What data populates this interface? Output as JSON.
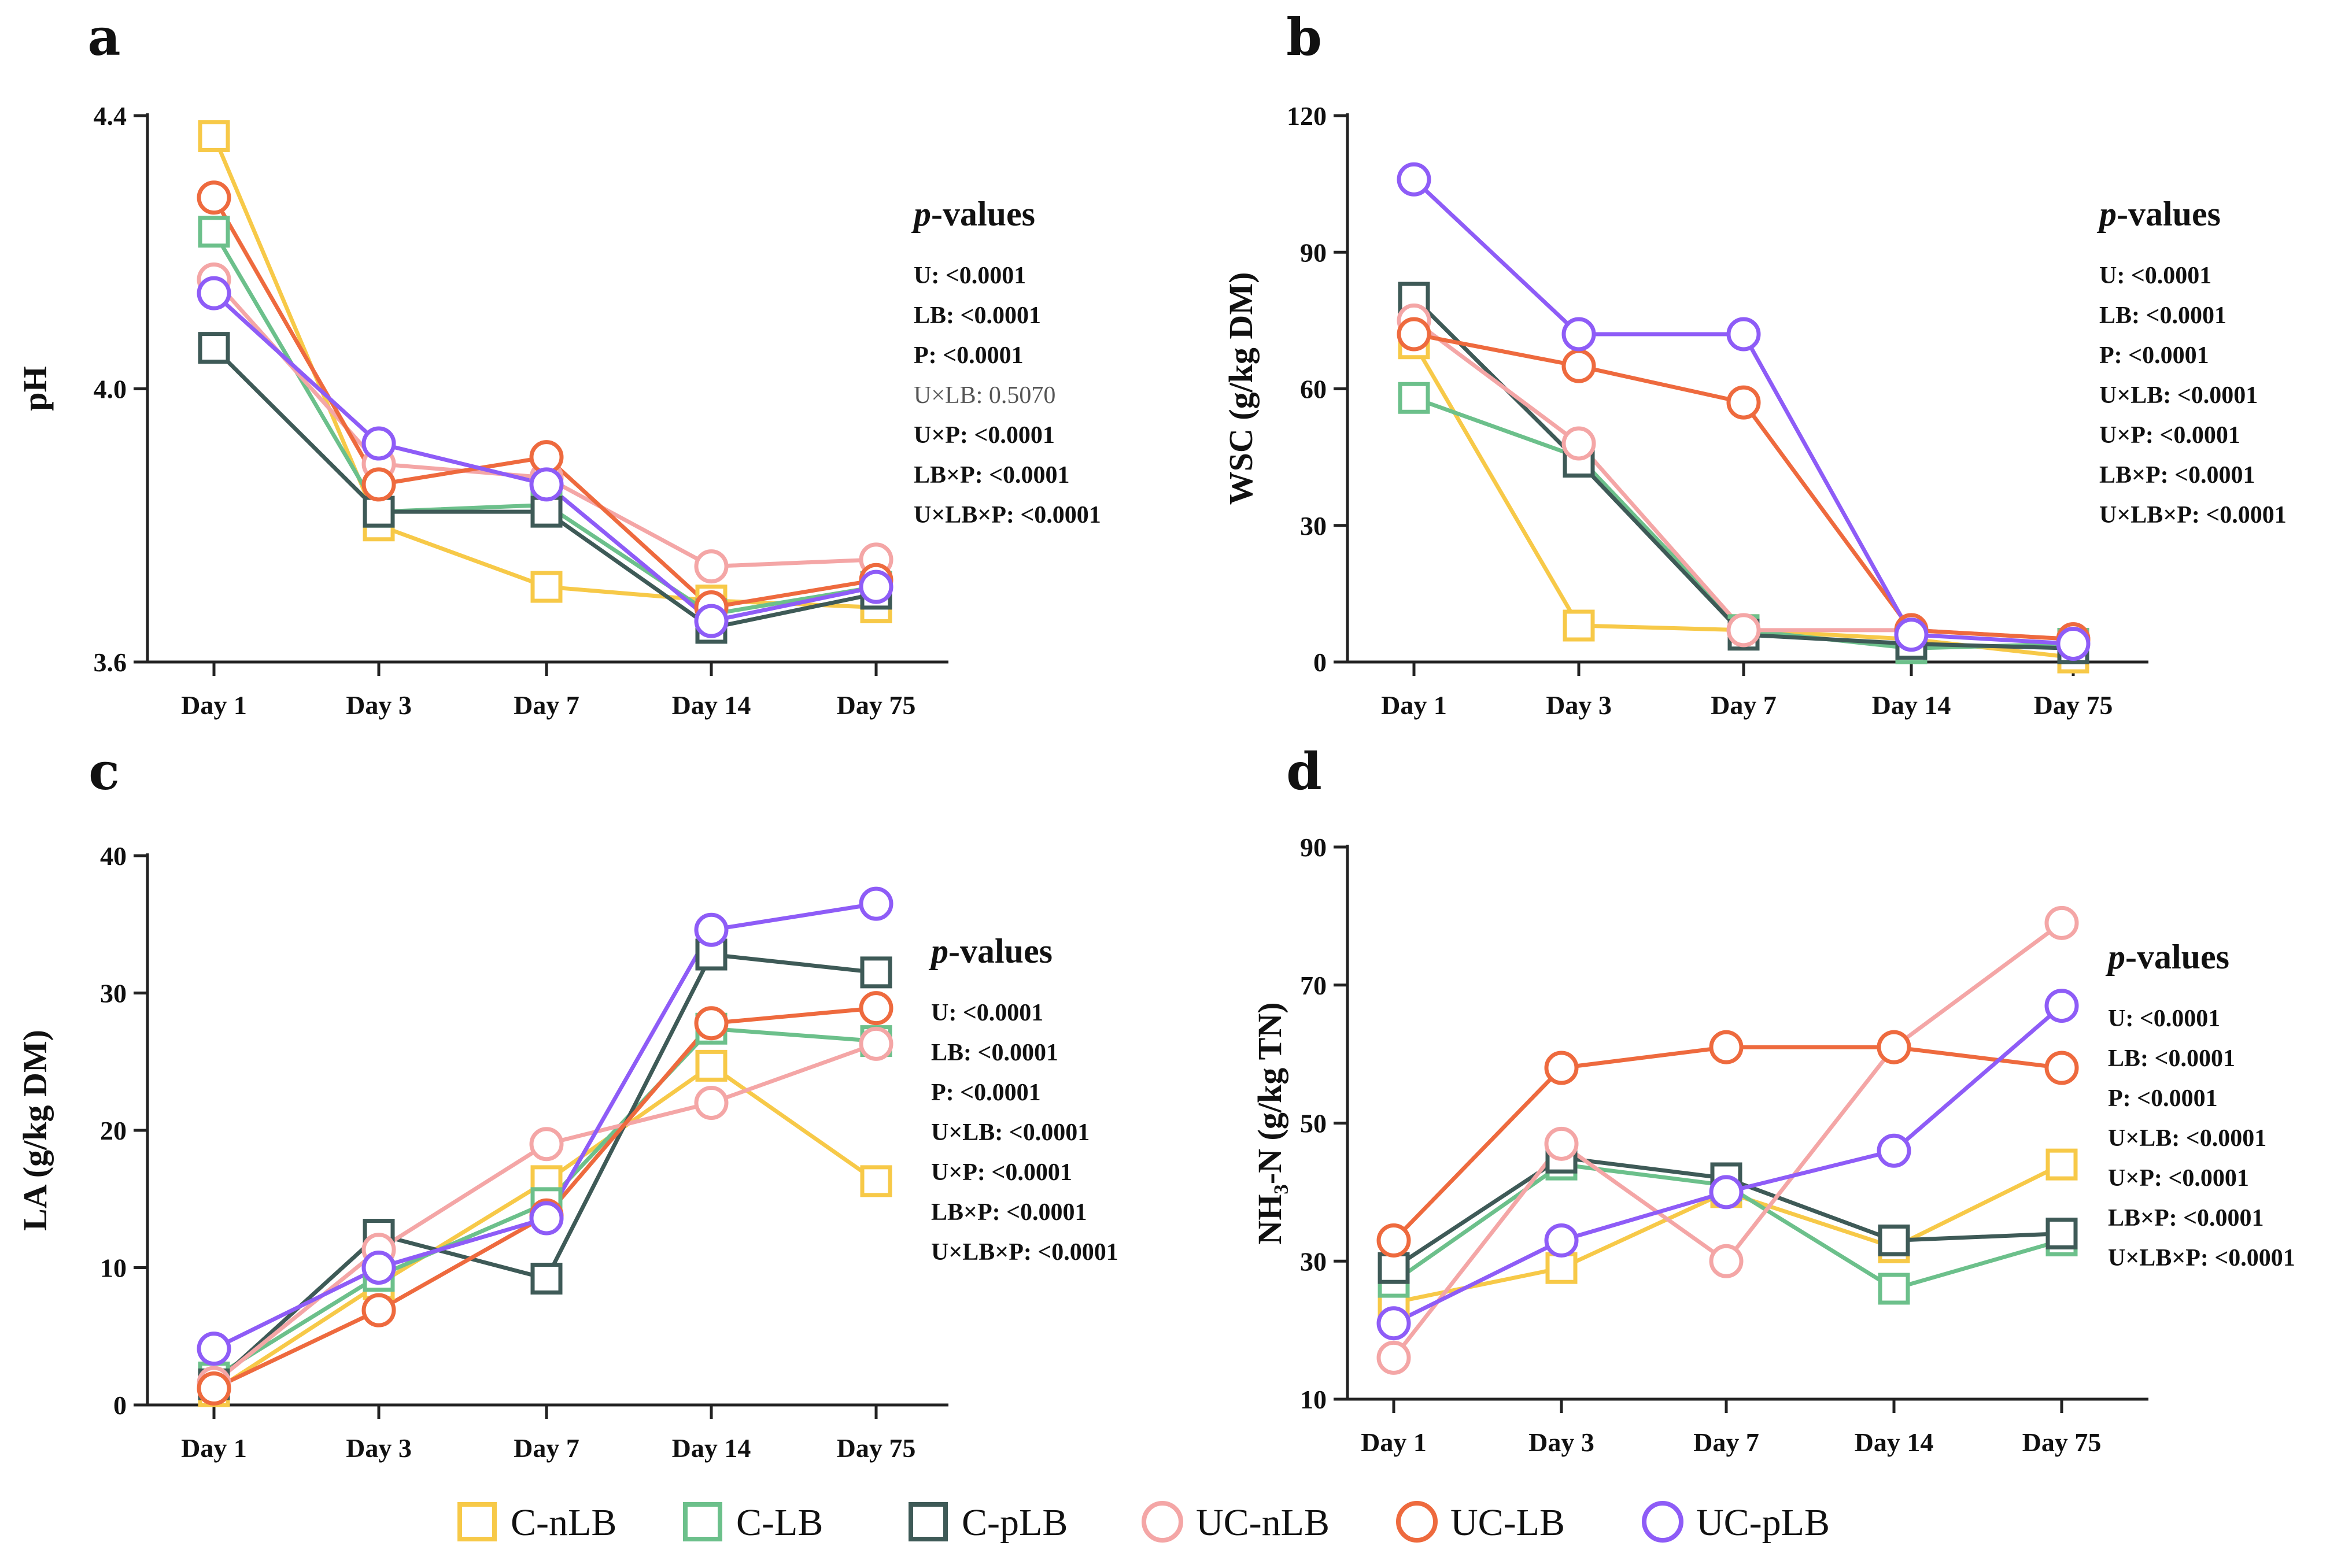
{
  "colors": {
    "C-nLB": "#F7C948",
    "C-LB": "#6CC08B",
    "C-pLB": "#3E5A57",
    "UC-nLB": "#F4A6A6",
    "UC-LB": "#EE6A3E",
    "UC-pLB": "#8E5CF7"
  },
  "legend": [
    {
      "label": "C-nLB",
      "shape": "square"
    },
    {
      "label": "C-LB",
      "shape": "square"
    },
    {
      "label": "C-pLB",
      "shape": "square"
    },
    {
      "label": "UC-nLB",
      "shape": "circle"
    },
    {
      "label": "UC-LB",
      "shape": "circle"
    },
    {
      "label": "UC-pLB",
      "shape": "circle"
    }
  ],
  "chart_data": [
    {
      "panel": "a",
      "type": "line",
      "categories": [
        "Day 1",
        "Day 3",
        "Day 7",
        "Day 14",
        "Day 75"
      ],
      "ylabel": "pH",
      "ylim": [
        3.6,
        4.4
      ],
      "yticks": [
        3.6,
        4.0,
        4.4
      ],
      "ytick_labels": [
        "3.6",
        "4.0",
        "4.4"
      ],
      "pvalues_title": "p-values",
      "pvalues": [
        "U: <0.0001",
        "LB: <0.0001",
        "P: <0.0001",
        "U×LB: 0.5070",
        "U×P: <0.0001",
        "LB×P: <0.0001",
        "U×LB×P: <0.0001"
      ],
      "pvalues_ns_index": 3,
      "series": [
        {
          "name": "C-nLB",
          "values": [
            4.37,
            3.8,
            3.71,
            3.69,
            3.68
          ]
        },
        {
          "name": "C-LB",
          "values": [
            4.23,
            3.82,
            3.83,
            3.67,
            3.71
          ]
        },
        {
          "name": "C-pLB",
          "values": [
            4.06,
            3.82,
            3.82,
            3.65,
            3.7
          ]
        },
        {
          "name": "UC-nLB",
          "values": [
            4.16,
            3.89,
            3.87,
            3.74,
            3.75
          ]
        },
        {
          "name": "UC-LB",
          "values": [
            4.28,
            3.86,
            3.9,
            3.68,
            3.72
          ]
        },
        {
          "name": "UC-pLB",
          "values": [
            4.14,
            3.92,
            3.86,
            3.66,
            3.71
          ]
        }
      ]
    },
    {
      "panel": "b",
      "type": "line",
      "categories": [
        "Day 1",
        "Day 3",
        "Day 7",
        "Day 14",
        "Day 75"
      ],
      "ylabel": "WSC (g/kg DM)",
      "ylim": [
        0,
        120
      ],
      "yticks": [
        0,
        30,
        60,
        90,
        120
      ],
      "ytick_labels": [
        "0",
        "30",
        "60",
        "90",
        "120"
      ],
      "pvalues_title": "p-values",
      "pvalues": [
        "U: <0.0001",
        "LB: <0.0001",
        "P: <0.0001",
        "U×LB: <0.0001",
        "U×P: <0.0001",
        "LB×P: <0.0001",
        "U×LB×P: <0.0001"
      ],
      "pvalues_ns_index": -1,
      "series": [
        {
          "name": "C-nLB",
          "values": [
            70,
            8,
            7,
            5,
            1
          ]
        },
        {
          "name": "C-LB",
          "values": [
            58,
            45,
            7,
            3,
            4
          ]
        },
        {
          "name": "C-pLB",
          "values": [
            80,
            44,
            6,
            4,
            3
          ]
        },
        {
          "name": "UC-nLB",
          "values": [
            75,
            48,
            7,
            7,
            5
          ]
        },
        {
          "name": "UC-LB",
          "values": [
            72,
            65,
            57,
            7,
            5
          ]
        },
        {
          "name": "UC-pLB",
          "values": [
            106,
            72,
            72,
            6,
            4
          ]
        }
      ]
    },
    {
      "panel": "c",
      "type": "line",
      "categories": [
        "Day 1",
        "Day 3",
        "Day 7",
        "Day 14",
        "Day 75"
      ],
      "ylabel": "LA (g/kg DM)",
      "ylim": [
        0,
        40
      ],
      "yticks": [
        0,
        10,
        20,
        30,
        40
      ],
      "ytick_labels": [
        "0",
        "10",
        "20",
        "30",
        "40"
      ],
      "pvalues_title": "p-values",
      "pvalues": [
        "U: <0.0001",
        "LB: <0.0001",
        "P: <0.0001",
        "U×LB: <0.0001",
        "U×P: <0.0001",
        "LB×P: <0.0001",
        "U×LB×P: <0.0001"
      ],
      "pvalues_ns_index": -1,
      "series": [
        {
          "name": "C-nLB",
          "values": [
            1.0,
            8.8,
            16.3,
            24.7,
            16.3
          ]
        },
        {
          "name": "C-LB",
          "values": [
            2.0,
            9.4,
            14.7,
            27.4,
            26.5
          ]
        },
        {
          "name": "C-pLB",
          "values": [
            1.5,
            12.4,
            9.2,
            32.8,
            31.5
          ]
        },
        {
          "name": "UC-nLB",
          "values": [
            1.6,
            11.3,
            19.0,
            22.0,
            26.3
          ]
        },
        {
          "name": "UC-LB",
          "values": [
            1.2,
            6.9,
            13.8,
            27.8,
            28.9
          ]
        },
        {
          "name": "UC-pLB",
          "values": [
            4.1,
            10.0,
            13.6,
            34.6,
            36.5
          ]
        }
      ]
    },
    {
      "panel": "d",
      "type": "line",
      "categories": [
        "Day 1",
        "Day 3",
        "Day 7",
        "Day 14",
        "Day 75"
      ],
      "ylabel": "NH₃-N (g/kg TN)",
      "ylim": [
        10,
        90
      ],
      "yticks": [
        10,
        30,
        50,
        70,
        90
      ],
      "ytick_labels": [
        "10",
        "30",
        "50",
        "70",
        "90"
      ],
      "pvalues_title": "p-values",
      "pvalues": [
        "U: <0.0001",
        "LB: <0.0001",
        "P: <0.0001",
        "U×LB: <0.0001",
        "U×P: <0.0001",
        "LB×P: <0.0001",
        "U×LB×P: <0.0001"
      ],
      "pvalues_ns_index": -1,
      "series": [
        {
          "name": "C-nLB",
          "values": [
            24,
            29,
            40,
            32,
            44
          ]
        },
        {
          "name": "C-LB",
          "values": [
            27,
            44,
            41,
            26,
            33
          ]
        },
        {
          "name": "C-pLB",
          "values": [
            29,
            45,
            42,
            33,
            34
          ]
        },
        {
          "name": "UC-nLB",
          "values": [
            16,
            47,
            30,
            61,
            79
          ]
        },
        {
          "name": "UC-LB",
          "values": [
            33,
            58,
            61,
            61,
            58
          ]
        },
        {
          "name": "UC-pLB",
          "values": [
            21,
            33,
            40,
            46,
            67
          ]
        }
      ]
    }
  ]
}
